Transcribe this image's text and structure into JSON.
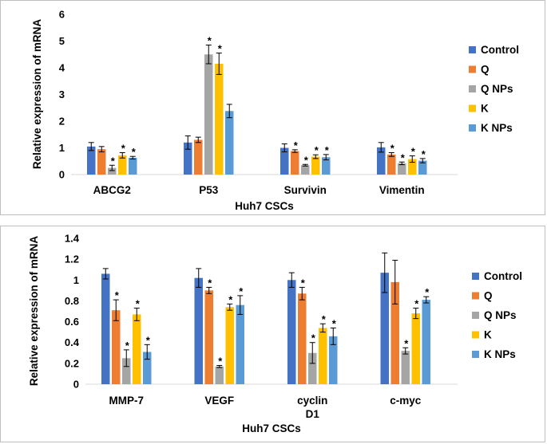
{
  "chart_data": [
    {
      "type": "bar",
      "title": "",
      "xlabel": "Huh7 CSCs",
      "ylabel": "Relative expression of mRNA",
      "ylim": [
        0,
        6
      ],
      "yticks": [
        "0",
        "1",
        "2",
        "3",
        "4",
        "5",
        "6"
      ],
      "categories": [
        [
          "ABCG2"
        ],
        [
          "P53"
        ],
        [
          "Survivin"
        ],
        [
          "Vimentin"
        ]
      ],
      "series": [
        {
          "name": "Control",
          "color": "#4472C4",
          "values": [
            1.05,
            1.2,
            1.0,
            1.02
          ],
          "errors": [
            0.15,
            0.25,
            0.15,
            0.18
          ],
          "sig": [
            false,
            false,
            false,
            false
          ]
        },
        {
          "name": "Q",
          "color": "#ED7D31",
          "values": [
            0.95,
            1.3,
            0.88,
            0.75
          ],
          "errors": [
            0.1,
            0.1,
            0.05,
            0.07
          ],
          "sig": [
            false,
            false,
            true,
            true
          ]
        },
        {
          "name": "Q NPs",
          "color": "#A5A5A5",
          "values": [
            0.25,
            4.5,
            0.35,
            0.42
          ],
          "errors": [
            0.1,
            0.35,
            0.03,
            0.05
          ],
          "sig": [
            true,
            true,
            true,
            true
          ]
        },
        {
          "name": "K",
          "color": "#FFC000",
          "values": [
            0.72,
            4.15,
            0.67,
            0.58
          ],
          "errors": [
            0.1,
            0.4,
            0.07,
            0.12
          ],
          "sig": [
            true,
            true,
            true,
            true
          ]
        },
        {
          "name": "K NPs",
          "color": "#5B9BD5",
          "values": [
            0.63,
            2.38,
            0.65,
            0.52
          ],
          "errors": [
            0.05,
            0.25,
            0.1,
            0.08
          ],
          "sig": [
            true,
            false,
            true,
            true
          ]
        }
      ]
    },
    {
      "type": "bar",
      "title": "",
      "xlabel": "Huh7 CSCs",
      "ylabel": "Relative expression of mRNA",
      "ylim": [
        0,
        1.4
      ],
      "yticks": [
        "0",
        "0.2",
        "0.4",
        "0.6",
        "0.8",
        "1",
        "1.2",
        "1.4"
      ],
      "categories": [
        [
          "MMP-7"
        ],
        [
          "VEGF"
        ],
        [
          "cyclin",
          "D1"
        ],
        [
          "c-myc"
        ]
      ],
      "series": [
        {
          "name": "Control",
          "color": "#4472C4",
          "values": [
            1.06,
            1.02,
            1.0,
            1.07
          ],
          "errors": [
            0.05,
            0.09,
            0.07,
            0.19
          ],
          "sig": [
            false,
            false,
            false,
            false
          ]
        },
        {
          "name": "Q",
          "color": "#ED7D31",
          "values": [
            0.71,
            0.9,
            0.87,
            0.98
          ],
          "errors": [
            0.1,
            0.03,
            0.06,
            0.21
          ],
          "sig": [
            true,
            true,
            true,
            false
          ]
        },
        {
          "name": "Q NPs",
          "color": "#A5A5A5",
          "values": [
            0.25,
            0.17,
            0.3,
            0.32
          ],
          "errors": [
            0.08,
            0.01,
            0.1,
            0.03
          ],
          "sig": [
            true,
            true,
            true,
            true
          ]
        },
        {
          "name": "K",
          "color": "#FFC000",
          "values": [
            0.67,
            0.74,
            0.54,
            0.68
          ],
          "errors": [
            0.06,
            0.03,
            0.04,
            0.05
          ],
          "sig": [
            true,
            true,
            true,
            true
          ]
        },
        {
          "name": "K NPs",
          "color": "#5B9BD5",
          "values": [
            0.31,
            0.76,
            0.46,
            0.81
          ],
          "errors": [
            0.07,
            0.09,
            0.08,
            0.03
          ],
          "sig": [
            true,
            true,
            true,
            true
          ]
        }
      ]
    }
  ]
}
